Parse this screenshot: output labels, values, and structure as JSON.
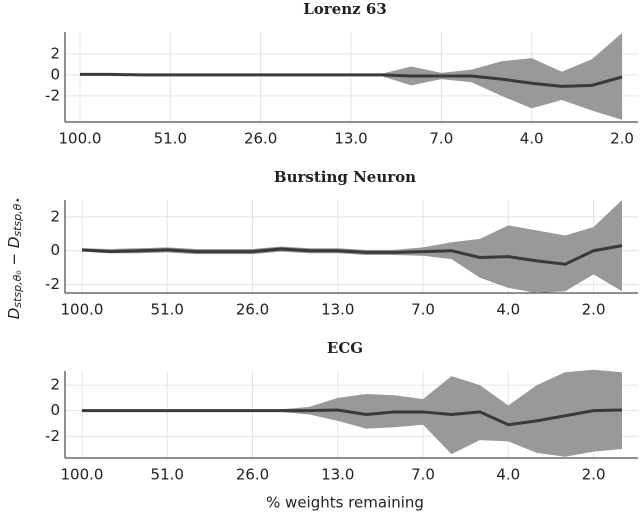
{
  "chart_data": [
    {
      "type": "line",
      "title": "Lorenz 63",
      "color": "#3a3a3a",
      "band_color": "#999999",
      "grid": true,
      "categories": [
        "100.0",
        null,
        null,
        "51.0",
        null,
        null,
        "26.0",
        null,
        null,
        "13.0",
        null,
        null,
        "7.0",
        null,
        null,
        "4.0",
        null,
        null,
        "2.0"
      ],
      "values": [
        0.05,
        0.05,
        0,
        0,
        0,
        0,
        0,
        0,
        0,
        0,
        0,
        -0.1,
        -0.1,
        -0.1,
        -0.4,
        -0.8,
        -1.1,
        -1.0,
        -0.2
      ],
      "upper": [
        0.1,
        0.1,
        0.1,
        0.1,
        0.1,
        0.1,
        0.1,
        0.1,
        0.1,
        0.1,
        0.1,
        0.8,
        0.2,
        0.5,
        1.3,
        1.6,
        0.3,
        1.5,
        4.0
      ],
      "lower": [
        -0.05,
        -0.05,
        -0.1,
        -0.1,
        -0.1,
        -0.1,
        -0.1,
        -0.1,
        -0.1,
        -0.1,
        -0.1,
        -1.0,
        -0.4,
        -0.7,
        -2.0,
        -3.2,
        -2.4,
        -3.4,
        -4.3
      ],
      "ylim": [
        -4.5,
        4.1
      ],
      "yticks": [
        -2,
        0,
        2
      ]
    },
    {
      "type": "line",
      "title": "Bursting Neuron",
      "color": "#3a3a3a",
      "band_color": "#999999",
      "grid": true,
      "categories": [
        "100.0",
        null,
        null,
        "51.0",
        null,
        null,
        "26.0",
        null,
        null,
        "13.0",
        null,
        null,
        "7.0",
        null,
        null,
        "4.0",
        null,
        null,
        "2.0",
        null
      ],
      "values": [
        0.05,
        -0.05,
        0,
        0.05,
        -0.05,
        -0.05,
        -0.05,
        0.1,
        0,
        0,
        -0.1,
        -0.1,
        -0.05,
        0,
        -0.4,
        -0.35,
        -0.6,
        -0.8,
        0,
        0.3
      ],
      "upper": [
        0.15,
        0.1,
        0.15,
        0.2,
        0.1,
        0.1,
        0.1,
        0.25,
        0.15,
        0.15,
        0.05,
        0.05,
        0.2,
        0.5,
        0.7,
        1.5,
        1.2,
        0.9,
        1.4,
        3.0
      ],
      "lower": [
        -0.05,
        -0.15,
        -0.15,
        -0.1,
        -0.2,
        -0.2,
        -0.2,
        -0.05,
        -0.15,
        -0.15,
        -0.25,
        -0.25,
        -0.3,
        -0.5,
        -1.6,
        -2.2,
        -2.5,
        -2.4,
        -1.4,
        -2.4
      ],
      "ylim": [
        -2.5,
        3.0
      ],
      "yticks": [
        -2,
        0,
        2
      ]
    },
    {
      "type": "line",
      "title": "ECG",
      "color": "#3a3a3a",
      "band_color": "#999999",
      "grid": true,
      "categories": [
        "100.0",
        null,
        null,
        "51.0",
        null,
        null,
        "26.0",
        null,
        null,
        "13.0",
        null,
        null,
        "7.0",
        null,
        null,
        "4.0",
        null,
        null,
        "2.0",
        null
      ],
      "values": [
        0,
        0,
        0,
        0,
        0,
        0,
        0,
        0,
        0,
        0.05,
        -0.3,
        -0.1,
        -0.1,
        -0.3,
        -0.1,
        -1.1,
        -0.8,
        -0.4,
        0,
        0.05
      ],
      "upper": [
        0.05,
        0.05,
        0.05,
        0.05,
        0.05,
        0.05,
        0.05,
        0.1,
        0.3,
        1.0,
        1.3,
        1.2,
        0.9,
        2.7,
        2.0,
        0.4,
        2.0,
        3.0,
        3.2,
        3.0
      ],
      "lower": [
        -0.05,
        -0.05,
        -0.05,
        -0.05,
        -0.05,
        -0.05,
        -0.05,
        -0.1,
        -0.3,
        -0.8,
        -1.4,
        -1.3,
        -1.1,
        -3.4,
        -2.3,
        -2.4,
        -3.3,
        -3.6,
        -3.2,
        -3.0
      ],
      "ylim": [
        -3.7,
        3.1
      ],
      "yticks": [
        -2,
        0,
        2
      ]
    }
  ],
  "axis_labels": {
    "x": "% weights remaining",
    "y": [
      "D",
      "stsp,θ₀",
      " − D",
      "stsp,θ⋆"
    ]
  }
}
